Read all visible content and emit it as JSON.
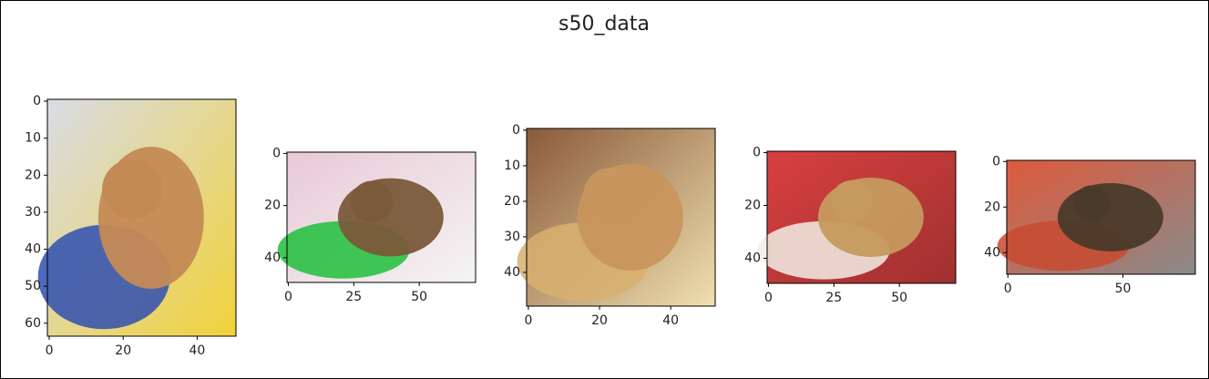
{
  "title": "s50_data",
  "chart_data": [
    {
      "type": "image",
      "xlim": [
        -0.5,
        50.5
      ],
      "ylim": [
        63.5,
        -0.5
      ],
      "xticks": [
        0,
        20,
        40
      ],
      "yticks": [
        0,
        10,
        20,
        30,
        40,
        50,
        60
      ]
    },
    {
      "type": "image",
      "xlim": [
        -0.5,
        71.5
      ],
      "ylim": [
        49.5,
        -0.5
      ],
      "xticks": [
        0,
        25,
        50
      ],
      "yticks": [
        0,
        20,
        40
      ]
    },
    {
      "type": "image",
      "xlim": [
        -0.5,
        52.5
      ],
      "ylim": [
        49.5,
        -0.5
      ],
      "xticks": [
        0,
        20,
        40
      ],
      "yticks": [
        0,
        10,
        20,
        30,
        40
      ]
    },
    {
      "type": "image",
      "xlim": [
        -0.5,
        71.5
      ],
      "ylim": [
        49.5,
        -0.5
      ],
      "xticks": [
        0,
        25,
        50
      ],
      "yticks": [
        0,
        20,
        40
      ]
    },
    {
      "type": "image",
      "xlim": [
        -0.5,
        81.5
      ],
      "ylim": [
        49.5,
        -0.5
      ],
      "xticks": [
        0,
        50
      ],
      "yticks": [
        0,
        20,
        40
      ]
    }
  ]
}
